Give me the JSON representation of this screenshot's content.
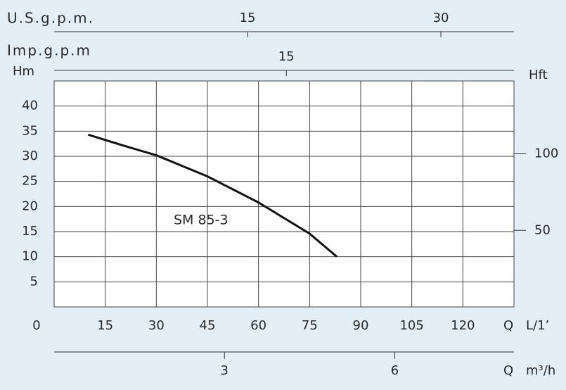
{
  "chart_data": {
    "type": "line",
    "x_label": "L/1’",
    "x_q": "Q",
    "y_label": "Hm",
    "y2_label": "Hft",
    "x": [
      10,
      20,
      30,
      45,
      60,
      75,
      83
    ],
    "series": [
      {
        "name": "SM 85-3",
        "color": "#111111",
        "values": [
          34.3,
          32.2,
          30.2,
          26,
          20.8,
          14.6,
          10
        ]
      }
    ],
    "xlim": [
      0,
      135
    ],
    "xticks": [
      0,
      15,
      30,
      45,
      60,
      75,
      90,
      105,
      120
    ],
    "ylim": [
      0,
      45
    ],
    "yticks": [
      5,
      10,
      15,
      20,
      25,
      30,
      35,
      40
    ],
    "y2lim": [
      0,
      147.6
    ],
    "y2ticks": [
      50,
      100
    ],
    "grid": true,
    "top_axes": [
      {
        "label": "U.S.g.p.m.",
        "xlim": [
          0,
          35.67
        ],
        "xticks": [
          15,
          30
        ]
      },
      {
        "label": "Imp.g.p.m",
        "xlim": [
          0,
          29.7
        ],
        "xticks": [
          15
        ]
      }
    ],
    "bottom_axis": {
      "label": "m³/h",
      "q": "Q",
      "xlim": [
        0,
        8.1
      ],
      "xticks": [
        3,
        6
      ]
    }
  }
}
